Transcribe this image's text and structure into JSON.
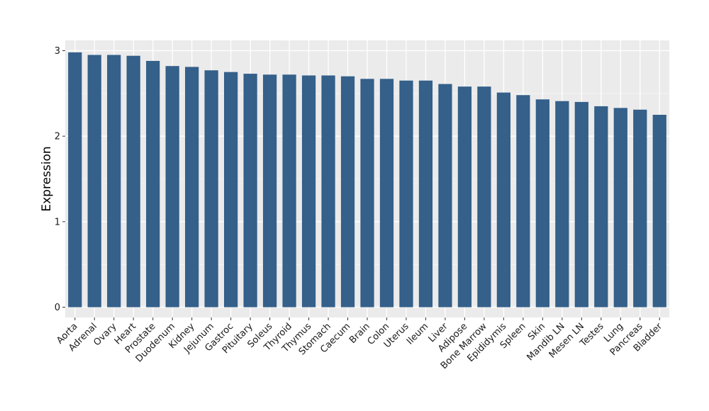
{
  "chart_data": {
    "type": "bar",
    "xlabel": "",
    "ylabel": "Expression",
    "ylim": [
      -0.12,
      3.12
    ],
    "yticks": [
      0,
      1,
      2,
      3
    ],
    "grid": true,
    "legend": "none",
    "colors": {
      "bar": "#34608a",
      "panel": "#ebebeb",
      "grid_major": "#ffffff",
      "grid_minor": "#f5f5f5"
    },
    "categories": [
      "Aorta",
      "Adrenal",
      "Ovary",
      "Heart",
      "Prostate",
      "Duodenum",
      "Kidney",
      "Jejunum",
      "Gastroc",
      "Pituitary",
      "Soleus",
      "Thyroid",
      "Thymus",
      "Stomach",
      "Caecum",
      "Brain",
      "Colon",
      "Uterus",
      "Ileum",
      "Liver",
      "Adipose",
      "Bone Marrow",
      "Epididymis",
      "Spleen",
      "Skin",
      "Mandib LN",
      "Mesen LN",
      "Testes",
      "Lung",
      "Pancreas",
      "Bladder"
    ],
    "values": [
      2.98,
      2.95,
      2.95,
      2.94,
      2.88,
      2.82,
      2.81,
      2.77,
      2.75,
      2.73,
      2.72,
      2.72,
      2.71,
      2.71,
      2.7,
      2.67,
      2.67,
      2.65,
      2.65,
      2.61,
      2.58,
      2.58,
      2.51,
      2.48,
      2.43,
      2.41,
      2.4,
      2.35,
      2.33,
      2.31,
      2.25
    ]
  }
}
